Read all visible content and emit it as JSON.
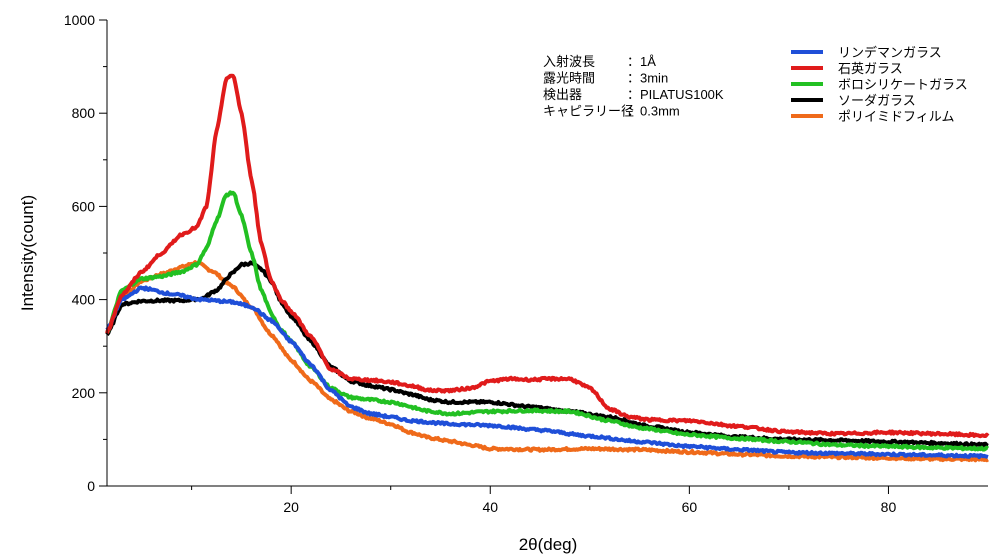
{
  "chart_data": {
    "type": "line",
    "xlabel": "2θ(deg)",
    "ylabel": "Intensity(count)",
    "xlim": [
      1.5,
      90
    ],
    "ylim": [
      0,
      1000
    ],
    "x_ticks": [
      20,
      40,
      60,
      80
    ],
    "y_ticks": [
      0,
      200,
      400,
      600,
      800,
      1000
    ],
    "grid": false,
    "legend_position": "top-right",
    "info_box": [
      {
        "label": "入射波長",
        "value": "：1Å"
      },
      {
        "label": "露光時間",
        "value": "：3min"
      },
      {
        "label": "検出器",
        "value": "：PILATUS100K"
      },
      {
        "label": "キャピラリー径",
        "value": "：0.3mm"
      }
    ],
    "series": [
      {
        "name": "リンデマンガラス",
        "color": "#1f4fd8",
        "points": [
          [
            1.5,
            335
          ],
          [
            3,
            400
          ],
          [
            5,
            425
          ],
          [
            8,
            412
          ],
          [
            11,
            400
          ],
          [
            14,
            395
          ],
          [
            16,
            385
          ],
          [
            18,
            355
          ],
          [
            20,
            310
          ],
          [
            22,
            260
          ],
          [
            24,
            205
          ],
          [
            26,
            170
          ],
          [
            28,
            155
          ],
          [
            30,
            148
          ],
          [
            32,
            140
          ],
          [
            36,
            133
          ],
          [
            40,
            130
          ],
          [
            45,
            120
          ],
          [
            50,
            107
          ],
          [
            55,
            95
          ],
          [
            60,
            85
          ],
          [
            65,
            78
          ],
          [
            70,
            72
          ],
          [
            75,
            70
          ],
          [
            80,
            68
          ],
          [
            85,
            66
          ],
          [
            90,
            64
          ]
        ]
      },
      {
        "name": "石英ガラス",
        "color": "#e01b1b",
        "points": [
          [
            1.5,
            330
          ],
          [
            3,
            410
          ],
          [
            5,
            460
          ],
          [
            7,
            500
          ],
          [
            9,
            540
          ],
          [
            10.5,
            555
          ],
          [
            11.5,
            600
          ],
          [
            12.5,
            760
          ],
          [
            13.5,
            875
          ],
          [
            14.2,
            880
          ],
          [
            15,
            800
          ],
          [
            16,
            660
          ],
          [
            17,
            520
          ],
          [
            18,
            440
          ],
          [
            19,
            400
          ],
          [
            20,
            375
          ],
          [
            22,
            320
          ],
          [
            24,
            250
          ],
          [
            26,
            230
          ],
          [
            28,
            227
          ],
          [
            30,
            223
          ],
          [
            32,
            215
          ],
          [
            34,
            205
          ],
          [
            36,
            205
          ],
          [
            38,
            210
          ],
          [
            40,
            225
          ],
          [
            42,
            230
          ],
          [
            44,
            228
          ],
          [
            46,
            230
          ],
          [
            48,
            230
          ],
          [
            50,
            210
          ],
          [
            52,
            165
          ],
          [
            54,
            148
          ],
          [
            56,
            142
          ],
          [
            60,
            140
          ],
          [
            65,
            128
          ],
          [
            70,
            116
          ],
          [
            75,
            112
          ],
          [
            80,
            115
          ],
          [
            85,
            112
          ],
          [
            90,
            108
          ]
        ]
      },
      {
        "name": "ボロシリケートガラス",
        "color": "#22c022",
        "points": [
          [
            1.5,
            330
          ],
          [
            3,
            420
          ],
          [
            5,
            445
          ],
          [
            7,
            450
          ],
          [
            9,
            460
          ],
          [
            10.5,
            475
          ],
          [
            11.5,
            510
          ],
          [
            12.5,
            570
          ],
          [
            13.5,
            625
          ],
          [
            14.2,
            630
          ],
          [
            15,
            580
          ],
          [
            16,
            500
          ],
          [
            17,
            420
          ],
          [
            18,
            370
          ],
          [
            19,
            335
          ],
          [
            20,
            310
          ],
          [
            22,
            255
          ],
          [
            24,
            210
          ],
          [
            26,
            190
          ],
          [
            28,
            185
          ],
          [
            30,
            180
          ],
          [
            34,
            160
          ],
          [
            36,
            155
          ],
          [
            40,
            160
          ],
          [
            44,
            162
          ],
          [
            48,
            160
          ],
          [
            52,
            140
          ],
          [
            55,
            125
          ],
          [
            60,
            110
          ],
          [
            65,
            102
          ],
          [
            70,
            95
          ],
          [
            75,
            88
          ],
          [
            80,
            85
          ],
          [
            85,
            82
          ],
          [
            90,
            80
          ]
        ]
      },
      {
        "name": "ソーダガラス",
        "color": "#000000",
        "points": [
          [
            1.5,
            325
          ],
          [
            3,
            390
          ],
          [
            5,
            397
          ],
          [
            7,
            398
          ],
          [
            9,
            398
          ],
          [
            11,
            402
          ],
          [
            12.5,
            420
          ],
          [
            14,
            455
          ],
          [
            15,
            475
          ],
          [
            16,
            478
          ],
          [
            17,
            465
          ],
          [
            18,
            440
          ],
          [
            19,
            395
          ],
          [
            20,
            365
          ],
          [
            22,
            310
          ],
          [
            24,
            255
          ],
          [
            26,
            225
          ],
          [
            28,
            215
          ],
          [
            30,
            207
          ],
          [
            32,
            197
          ],
          [
            34,
            185
          ],
          [
            36,
            180
          ],
          [
            40,
            180
          ],
          [
            44,
            170
          ],
          [
            48,
            160
          ],
          [
            52,
            148
          ],
          [
            56,
            128
          ],
          [
            60,
            115
          ],
          [
            65,
            105
          ],
          [
            70,
            100
          ],
          [
            75,
            98
          ],
          [
            80,
            95
          ],
          [
            85,
            92
          ],
          [
            90,
            88
          ]
        ]
      },
      {
        "name": "ポリイミドフィルム",
        "color": "#ef6a1a",
        "points": [
          [
            1.5,
            330
          ],
          [
            3,
            405
          ],
          [
            5,
            440
          ],
          [
            7,
            455
          ],
          [
            9,
            470
          ],
          [
            10.5,
            480
          ],
          [
            12,
            462
          ],
          [
            14,
            430
          ],
          [
            16,
            385
          ],
          [
            18,
            325
          ],
          [
            20,
            270
          ],
          [
            22,
            225
          ],
          [
            24,
            185
          ],
          [
            26,
            160
          ],
          [
            28,
            145
          ],
          [
            30,
            133
          ],
          [
            32,
            115
          ],
          [
            34,
            103
          ],
          [
            36,
            96
          ],
          [
            38,
            88
          ],
          [
            40,
            80
          ],
          [
            45,
            78
          ],
          [
            50,
            80
          ],
          [
            55,
            78
          ],
          [
            60,
            73
          ],
          [
            65,
            68
          ],
          [
            70,
            64
          ],
          [
            75,
            62
          ],
          [
            80,
            60
          ],
          [
            85,
            58
          ],
          [
            90,
            57
          ]
        ]
      }
    ]
  }
}
